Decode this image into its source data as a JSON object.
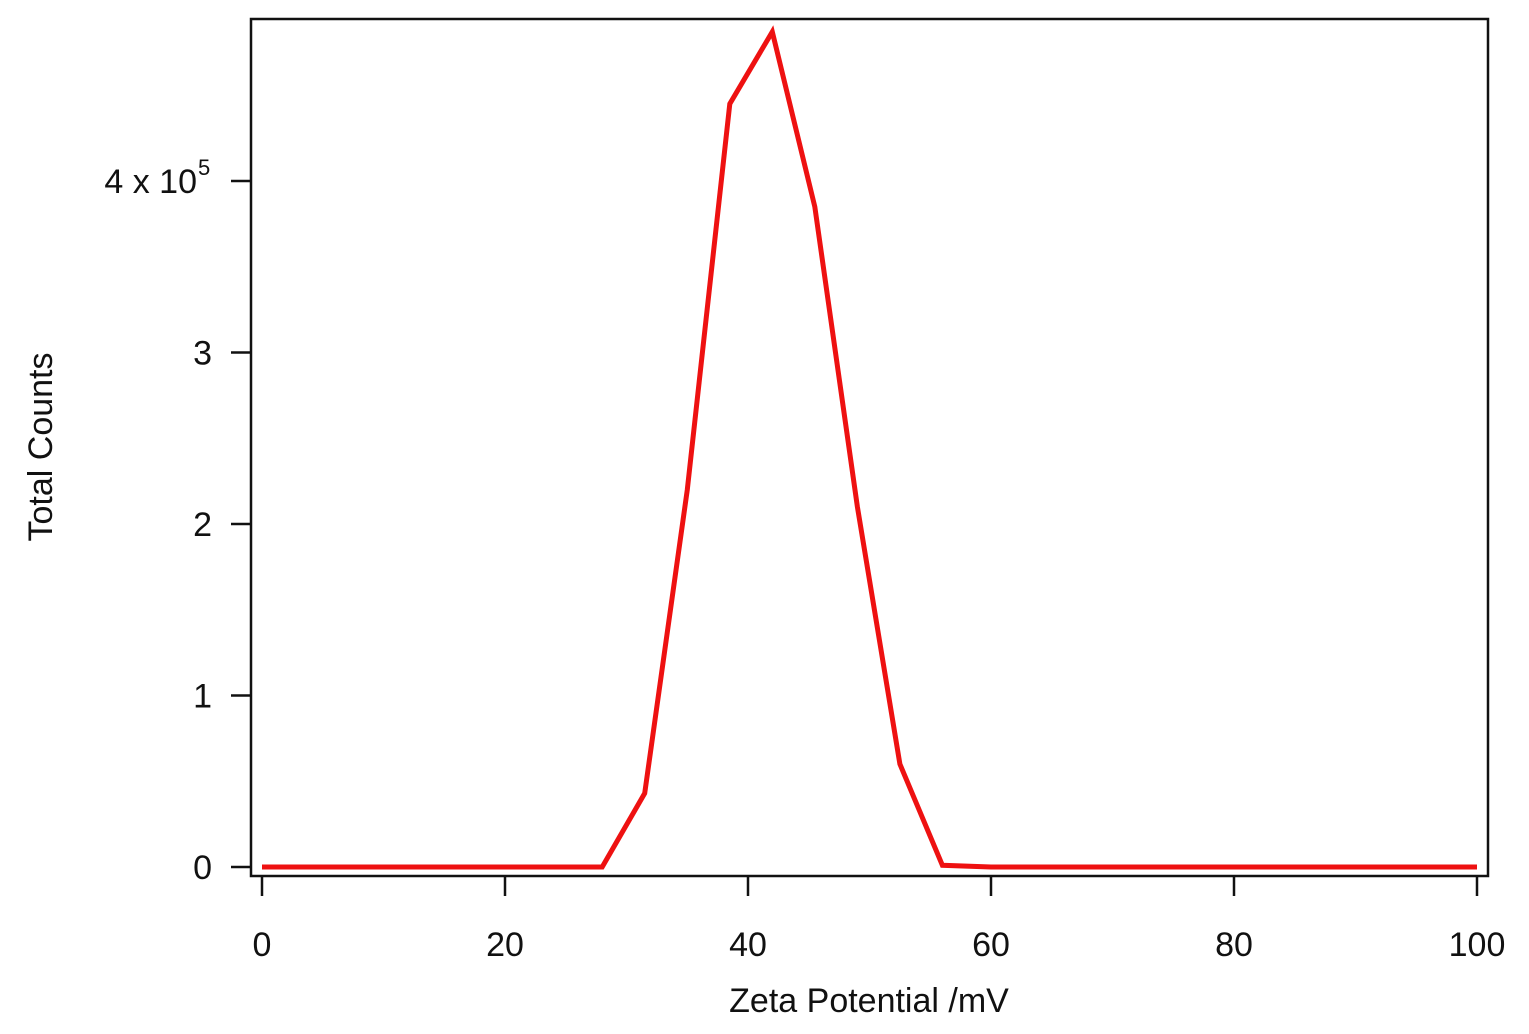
{
  "chart_data": {
    "type": "line",
    "xlabel": "Zeta Potential /mV",
    "ylabel": "Total Counts",
    "xlim": [
      -1,
      100
    ],
    "ylim": [
      0,
      490000
    ],
    "grid": false,
    "line_color": "#ee1111",
    "x_ticks": [
      0,
      20,
      40,
      60,
      80,
      100
    ],
    "x_tick_labels": [
      "0",
      "20",
      "40",
      "60",
      "80",
      "100"
    ],
    "y_ticks": [
      0,
      100000,
      200000,
      300000,
      400000
    ],
    "y_tick_labels": [
      "0",
      "1",
      "2",
      "3",
      "4 x 10"
    ],
    "y_multiplier_exponent": "5",
    "series": [
      {
        "x": [
          0,
          28,
          31.5,
          35,
          38.5,
          42,
          45.5,
          49,
          52.5,
          56,
          60,
          100
        ],
        "y": [
          0,
          0,
          43000,
          220000,
          445000,
          487000,
          385000,
          210000,
          60000,
          1000,
          0,
          0
        ]
      }
    ]
  }
}
